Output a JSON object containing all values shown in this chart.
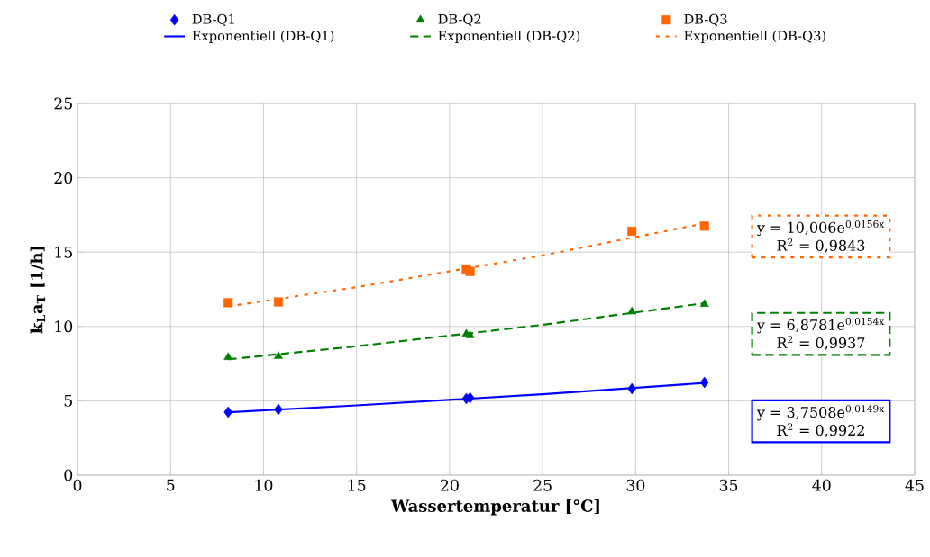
{
  "chart_data": {
    "type": "scatter",
    "xlabel": "**Wassertemperatur [°C]**",
    "ylabel": "**k$_{L}$a$_{T}$ [1/h]**",
    "xlim": [
      0,
      45
    ],
    "xticks": [
      0,
      5,
      10,
      15,
      20,
      25,
      30,
      35,
      40,
      45
    ],
    "ylim": [
      0,
      25
    ],
    "yticks": [
      0,
      5,
      10,
      15,
      20,
      25
    ],
    "grid": true,
    "legend": "top",
    "series": [
      {
        "name": "DB-Q1",
        "type": "scatter",
        "marker": "diamond",
        "color": "#0000ff",
        "x": [
          8.1,
          10.8,
          20.9,
          21.1,
          29.8,
          33.7
        ],
        "values": [
          4.24,
          4.42,
          5.15,
          5.2,
          5.81,
          6.24
        ]
      },
      {
        "name": "DB-Q2",
        "type": "scatter",
        "marker": "triangle",
        "color": "#008000",
        "x": [
          8.1,
          10.8,
          20.9,
          21.1,
          29.8,
          33.7
        ],
        "values": [
          7.93,
          8.0,
          9.5,
          9.4,
          11.0,
          11.5
        ]
      },
      {
        "name": "DB-Q3",
        "type": "scatter",
        "marker": "square",
        "color": "#ff6600",
        "x": [
          8.1,
          10.8,
          20.9,
          21.1,
          29.8,
          33.7
        ],
        "values": [
          11.6,
          11.65,
          13.86,
          13.7,
          16.4,
          16.75
        ]
      },
      {
        "name": "Exponentiell (DB-Q1)",
        "type": "line",
        "line_style": "solid",
        "color": "#0000ff",
        "x": [
          8.1,
          15,
          25,
          33.7
        ],
        "values": [
          4.23,
          4.69,
          5.44,
          6.2
        ]
      },
      {
        "name": "Exponentiell (DB-Q2)",
        "type": "line",
        "line_style": "dashed",
        "color": "#008000",
        "x": [
          8.1,
          15,
          25,
          33.7
        ],
        "values": [
          7.79,
          8.67,
          10.11,
          11.56
        ]
      },
      {
        "name": "Exponentiell (DB-Q3)",
        "type": "line",
        "line_style": "dotted",
        "color": "#ff6600",
        "x": [
          8.1,
          15,
          25,
          33.7
        ],
        "values": [
          11.35,
          12.64,
          14.78,
          16.93
        ]
      }
    ],
    "annotations": [
      "y = 10,006e$^{0,0156x}$",
      "R$^{2}$ = 0,9843",
      "y = 6,8781e$^{0,0154x}$",
      "R$^{2}$ = 0,9937",
      "y = 3,7508e$^{0,0149x}$",
      "R$^{2}$ = 0,9922"
    ]
  }
}
